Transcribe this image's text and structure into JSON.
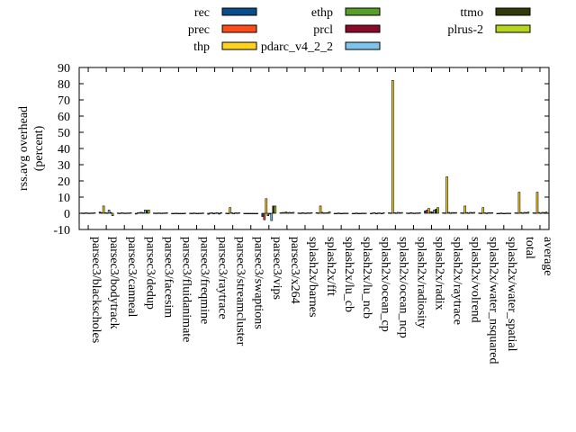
{
  "chart_data": {
    "type": "bar",
    "ylabel": "rss.avg overhead",
    "ylabel_unit": "(percent)",
    "ylim": [
      -10,
      90
    ],
    "yticks": [
      -10,
      0,
      10,
      20,
      30,
      40,
      50,
      60,
      70,
      80,
      90
    ],
    "grid": false,
    "legend_position": "top",
    "categories": [
      "parsec3/blackscholes",
      "parsec3/bodytrack",
      "parsec3/canneal",
      "parsec3/dedup",
      "parsec3/facesim",
      "parsec3/fluidanimate",
      "parsec3/freqmine",
      "parsec3/raytrace",
      "parsec3/streamcluster",
      "parsec3/swaptions",
      "parsec3/vips",
      "parsec3/x264",
      "splash2x/barnes",
      "splash2x/fft",
      "splash2x/lu_cb",
      "splash2x/lu_ncb",
      "splash2x/ocean_cp",
      "splash2x/ocean_ncp",
      "splash2x/radiosity",
      "splash2x/radix",
      "splash2x/raytrace",
      "splash2x/volrend",
      "splash2x/water_nsquared",
      "splash2x/water_spatial",
      "total",
      "average"
    ],
    "series": [
      {
        "name": "rec",
        "color": "#0b4d8c",
        "values": [
          0.2,
          0.8,
          0.2,
          -0.5,
          0.2,
          0.0,
          0.1,
          -0.6,
          0.1,
          0.0,
          -2.0,
          0.3,
          0.2,
          0.4,
          0.0,
          0.0,
          -0.3,
          0.3,
          0.2,
          1.5,
          0.3,
          0.3,
          0.2,
          0.0,
          0.3,
          0.3
        ]
      },
      {
        "name": "prec",
        "color": "#ff4a1a",
        "values": [
          0.1,
          0.3,
          0.1,
          0.3,
          0.1,
          0.0,
          0.0,
          0.2,
          0.0,
          0.0,
          -4.0,
          0.5,
          0.1,
          0.2,
          0.0,
          0.0,
          0.2,
          0.2,
          0.1,
          2.0,
          0.2,
          0.2,
          0.1,
          0.0,
          0.2,
          0.2
        ]
      },
      {
        "name": "thp",
        "color": "#ffd21f",
        "values": [
          0.3,
          4.5,
          0.3,
          0.5,
          0.2,
          0.1,
          0.2,
          0.3,
          3.5,
          0.0,
          9.0,
          0.5,
          0.4,
          4.5,
          0.2,
          0.2,
          0.3,
          82.0,
          0.4,
          3.0,
          22.5,
          4.5,
          3.5,
          0.2,
          13.0,
          13.0
        ]
      },
      {
        "name": "ethp",
        "color": "#5a9e2a",
        "values": [
          0.2,
          0.4,
          0.2,
          0.6,
          0.2,
          0.0,
          0.1,
          -0.4,
          0.3,
          0.0,
          -1.5,
          0.8,
          0.2,
          0.6,
          0.0,
          0.0,
          -0.4,
          0.4,
          0.2,
          1.0,
          0.6,
          0.5,
          0.3,
          0.0,
          0.5,
          0.5
        ]
      },
      {
        "name": "prcl",
        "color": "#8b0a2a",
        "values": [
          0.1,
          0.2,
          0.1,
          0.3,
          0.1,
          0.0,
          0.0,
          0.2,
          0.0,
          0.0,
          -0.5,
          0.3,
          0.1,
          0.2,
          0.0,
          0.0,
          0.2,
          0.2,
          0.1,
          0.8,
          0.2,
          0.2,
          0.1,
          0.0,
          0.2,
          0.2
        ]
      },
      {
        "name": "pdarc_v4_2_2",
        "color": "#7ec3ec",
        "values": [
          0.2,
          2.0,
          0.2,
          2.0,
          0.2,
          0.0,
          0.1,
          0.3,
          0.3,
          0.0,
          -4.5,
          0.6,
          0.3,
          0.3,
          0.1,
          0.1,
          0.2,
          0.6,
          0.2,
          2.0,
          0.5,
          0.6,
          0.4,
          0.1,
          0.6,
          0.6
        ]
      },
      {
        "name": "ttmo",
        "color": "#333a0a",
        "values": [
          0.2,
          0.5,
          0.2,
          1.8,
          0.2,
          0.0,
          0.1,
          -0.5,
          0.2,
          0.0,
          4.5,
          0.4,
          0.2,
          0.3,
          0.1,
          0.1,
          -0.3,
          0.3,
          0.2,
          2.5,
          0.4,
          0.4,
          0.3,
          0.1,
          0.4,
          0.4
        ]
      },
      {
        "name": "plrus-2",
        "color": "#b5d61c",
        "values": [
          0.3,
          -1.5,
          0.3,
          2.0,
          0.3,
          0.1,
          0.2,
          0.4,
          0.3,
          0.0,
          4.5,
          0.6,
          0.4,
          1.0,
          0.1,
          0.1,
          0.3,
          0.5,
          0.3,
          3.5,
          0.5,
          0.6,
          0.4,
          0.1,
          0.8,
          0.8
        ]
      }
    ]
  }
}
